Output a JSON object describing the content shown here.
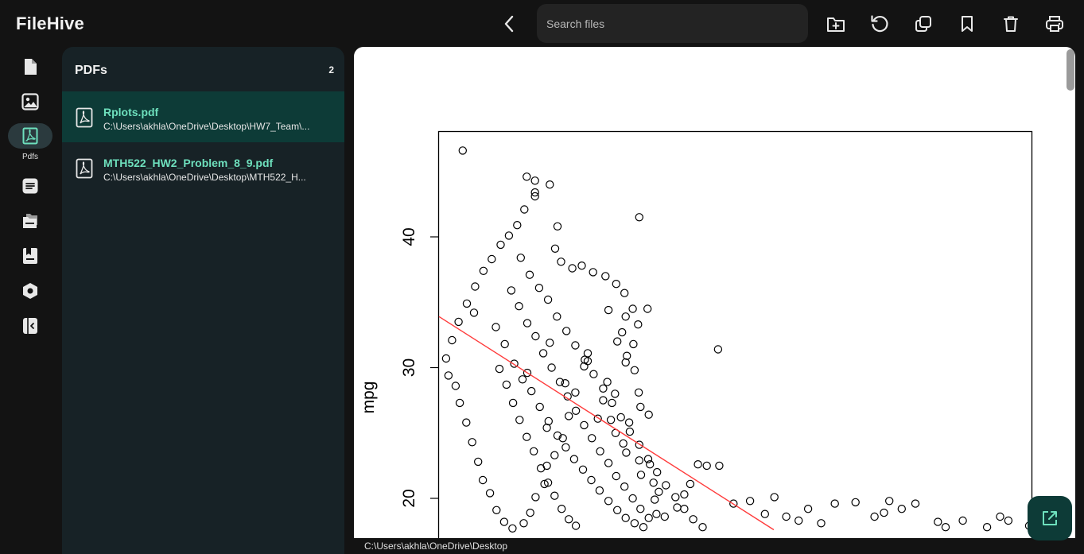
{
  "app": {
    "title": "FileHive"
  },
  "toolbar": {
    "search_placeholder": "Search files",
    "icons": [
      "back-icon",
      "new-folder-icon",
      "refresh-icon",
      "copy-icon",
      "bookmark-icon",
      "delete-icon",
      "print-icon"
    ]
  },
  "rail": {
    "items": [
      {
        "icon": "document-icon",
        "label": ""
      },
      {
        "icon": "image-icon",
        "label": ""
      },
      {
        "icon": "pdf-icon",
        "label": "Pdfs",
        "active": true
      },
      {
        "icon": "text-file-icon",
        "label": ""
      },
      {
        "icon": "folders-icon",
        "label": ""
      },
      {
        "icon": "archive-icon",
        "label": ""
      },
      {
        "icon": "settings-icon",
        "label": ""
      },
      {
        "icon": "collapse-icon",
        "label": ""
      }
    ]
  },
  "panel": {
    "title": "PDFs",
    "count": "2",
    "files": [
      {
        "name": "Rplots.pdf",
        "path": "C:\\Users\\akhla\\OneDrive\\Desktop\\HW7_Team\\...",
        "selected": true
      },
      {
        "name": "MTH522_HW2_Problem_8_9.pdf",
        "path": "C:\\Users\\akhla\\OneDrive\\Desktop\\MTH522_H...",
        "selected": false
      }
    ]
  },
  "viewer": {
    "status_path": "C:\\Users\\akhla\\OneDrive\\Desktop"
  },
  "colors": {
    "background": "#131313",
    "panel": "#172226",
    "selected_row": "#0d3b37",
    "accent": "#6ee0bd",
    "regression_line": "#ff3b3b"
  },
  "chart_data": {
    "type": "scatter",
    "xlabel": "",
    "ylabel": "mpg",
    "y_ticks": [
      "20",
      "30",
      "40"
    ],
    "ylim": [
      17.7,
      46.5
    ],
    "xlim": [
      0,
      100
    ],
    "grid": false,
    "regression_line": {
      "x": [
        0,
        56.5
      ],
      "y": [
        33.9,
        17.6
      ]
    },
    "points": [
      [
        4,
        46.6
      ],
      [
        14.8,
        44.6
      ],
      [
        16.2,
        44.3
      ],
      [
        16.2,
        43.4
      ],
      [
        16.2,
        43.1
      ],
      [
        18.7,
        44
      ],
      [
        33.8,
        41.5
      ],
      [
        20,
        40.8
      ],
      [
        19.6,
        39.1
      ],
      [
        20.6,
        38.1
      ],
      [
        22.5,
        37.6
      ],
      [
        24.1,
        37.8
      ],
      [
        26,
        37.3
      ],
      [
        28.1,
        37
      ],
      [
        29.9,
        36.4
      ],
      [
        31.3,
        35.7
      ],
      [
        28.6,
        34.4
      ],
      [
        31.5,
        33.9
      ],
      [
        32.7,
        34.5
      ],
      [
        33.6,
        33.3
      ],
      [
        30.1,
        32
      ],
      [
        32.8,
        31.8
      ],
      [
        31.7,
        30.9
      ],
      [
        31.5,
        30.4
      ],
      [
        33,
        29.8
      ],
      [
        29.7,
        28
      ],
      [
        33.7,
        28.1
      ],
      [
        34,
        27
      ],
      [
        35.4,
        26.4
      ],
      [
        32.1,
        25.8
      ],
      [
        14.9,
        29.6
      ],
      [
        18.2,
        25.4
      ],
      [
        5.9,
        34.2
      ],
      [
        18.7,
        31.9
      ],
      [
        25.1,
        31.1
      ],
      [
        25.1,
        30.5
      ],
      [
        21.3,
        28.8
      ],
      [
        28.4,
        28.9
      ],
      [
        27.7,
        27.5
      ],
      [
        26.8,
        26.1
      ],
      [
        29,
        26
      ],
      [
        29.8,
        25
      ],
      [
        31.1,
        24.2
      ],
      [
        31.6,
        23.5
      ],
      [
        33.8,
        22.9
      ],
      [
        35.6,
        22.6
      ],
      [
        34.1,
        21.8
      ],
      [
        36.2,
        21.2
      ],
      [
        37.1,
        20.5
      ],
      [
        36.4,
        19.9
      ],
      [
        36.7,
        18.8
      ],
      [
        38.1,
        18.6
      ],
      [
        40.2,
        19.3
      ],
      [
        41.4,
        20.3
      ],
      [
        42.4,
        21.1
      ],
      [
        43.7,
        22.6
      ],
      [
        45.2,
        22.5
      ],
      [
        47.3,
        22.5
      ],
      [
        49.7,
        19.6
      ],
      [
        52.5,
        19.8
      ],
      [
        55,
        18.8
      ],
      [
        56.6,
        20.1
      ],
      [
        58.6,
        18.6
      ],
      [
        60.7,
        18.3
      ],
      [
        62.3,
        19.2
      ],
      [
        64.5,
        18.1
      ],
      [
        66.8,
        19.6
      ],
      [
        70.3,
        19.7
      ],
      [
        73.5,
        18.6
      ],
      [
        75.1,
        18.9
      ],
      [
        76,
        19.8
      ],
      [
        78.1,
        19.2
      ],
      [
        80.4,
        19.6
      ],
      [
        84.2,
        18.2
      ],
      [
        85.5,
        17.8
      ],
      [
        88.4,
        18.3
      ],
      [
        92.5,
        17.8
      ],
      [
        94.7,
        18.6
      ],
      [
        96.1,
        18.3
      ],
      [
        99.6,
        17.9
      ],
      [
        47.1,
        31.4
      ],
      [
        35.2,
        34.5
      ],
      [
        30.9,
        32.7
      ],
      [
        24.5,
        30.1
      ],
      [
        23,
        28.1
      ],
      [
        21.9,
        26.3
      ],
      [
        20.9,
        24.6
      ],
      [
        19.5,
        23.3
      ],
      [
        18.2,
        22.5
      ],
      [
        17.8,
        21.1
      ],
      [
        16.3,
        20.1
      ],
      [
        15.4,
        18.9
      ],
      [
        14.3,
        18.1
      ],
      [
        12.4,
        17.7
      ],
      [
        11,
        18.2
      ],
      [
        9.7,
        19.1
      ],
      [
        8.6,
        20.4
      ],
      [
        7.4,
        21.4
      ],
      [
        6.6,
        22.8
      ],
      [
        5.6,
        24.3
      ],
      [
        4.6,
        25.8
      ],
      [
        3.5,
        27.3
      ],
      [
        2.8,
        28.6
      ],
      [
        1.6,
        29.4
      ],
      [
        1.2,
        30.7
      ],
      [
        2.2,
        32.1
      ],
      [
        3.3,
        33.5
      ],
      [
        4.7,
        34.9
      ],
      [
        6.1,
        36.2
      ],
      [
        7.5,
        37.4
      ],
      [
        8.9,
        38.3
      ],
      [
        10.4,
        39.4
      ],
      [
        11.8,
        40.1
      ],
      [
        13.2,
        40.9
      ],
      [
        14.4,
        42.1
      ],
      [
        9.6,
        33.1
      ],
      [
        11.1,
        31.8
      ],
      [
        12.7,
        30.3
      ],
      [
        14.1,
        29.1
      ],
      [
        15.6,
        28.2
      ],
      [
        17,
        27
      ],
      [
        18.5,
        25.9
      ],
      [
        20,
        24.8
      ],
      [
        21.4,
        23.9
      ],
      [
        22.8,
        23
      ],
      [
        24.3,
        22.2
      ],
      [
        25.7,
        21.4
      ],
      [
        27.1,
        20.6
      ],
      [
        28.6,
        19.8
      ],
      [
        30.1,
        19.1
      ],
      [
        31.5,
        18.5
      ],
      [
        33,
        18.1
      ],
      [
        34.5,
        17.8
      ],
      [
        10.2,
        29.9
      ],
      [
        11.4,
        28.7
      ],
      [
        12.5,
        27.3
      ],
      [
        13.6,
        26
      ],
      [
        14.8,
        24.7
      ],
      [
        16,
        23.6
      ],
      [
        17.2,
        22.3
      ],
      [
        18.4,
        21.2
      ],
      [
        19.5,
        20.2
      ],
      [
        20.7,
        19.2
      ],
      [
        21.9,
        18.4
      ],
      [
        23.1,
        17.9
      ],
      [
        12.2,
        35.9
      ],
      [
        13.5,
        34.7
      ],
      [
        14.9,
        33.4
      ],
      [
        16.3,
        32.4
      ],
      [
        17.6,
        31.1
      ],
      [
        19,
        30
      ],
      [
        20.4,
        28.9
      ],
      [
        21.7,
        27.8
      ],
      [
        23.1,
        26.7
      ],
      [
        24.5,
        25.6
      ],
      [
        25.8,
        24.6
      ],
      [
        27.2,
        23.6
      ],
      [
        28.6,
        22.7
      ],
      [
        29.9,
        21.7
      ],
      [
        31.3,
        20.9
      ],
      [
        32.7,
        20
      ],
      [
        34,
        19.2
      ],
      [
        35.4,
        18.5
      ],
      [
        13.8,
        38.4
      ],
      [
        15.3,
        37.1
      ],
      [
        16.9,
        36.1
      ],
      [
        18.4,
        35.2
      ],
      [
        19.9,
        33.9
      ],
      [
        21.5,
        32.8
      ],
      [
        23,
        31.7
      ],
      [
        24.6,
        30.6
      ],
      [
        26.1,
        29.5
      ],
      [
        27.7,
        28.4
      ],
      [
        29.2,
        27.3
      ],
      [
        30.7,
        26.2
      ],
      [
        32.2,
        25.1
      ],
      [
        33.8,
        24.1
      ],
      [
        35.3,
        23
      ],
      [
        36.8,
        22
      ],
      [
        38.3,
        21
      ],
      [
        39.9,
        20.1
      ],
      [
        41.4,
        19.2
      ],
      [
        42.9,
        18.4
      ],
      [
        44.5,
        17.8
      ]
    ]
  }
}
